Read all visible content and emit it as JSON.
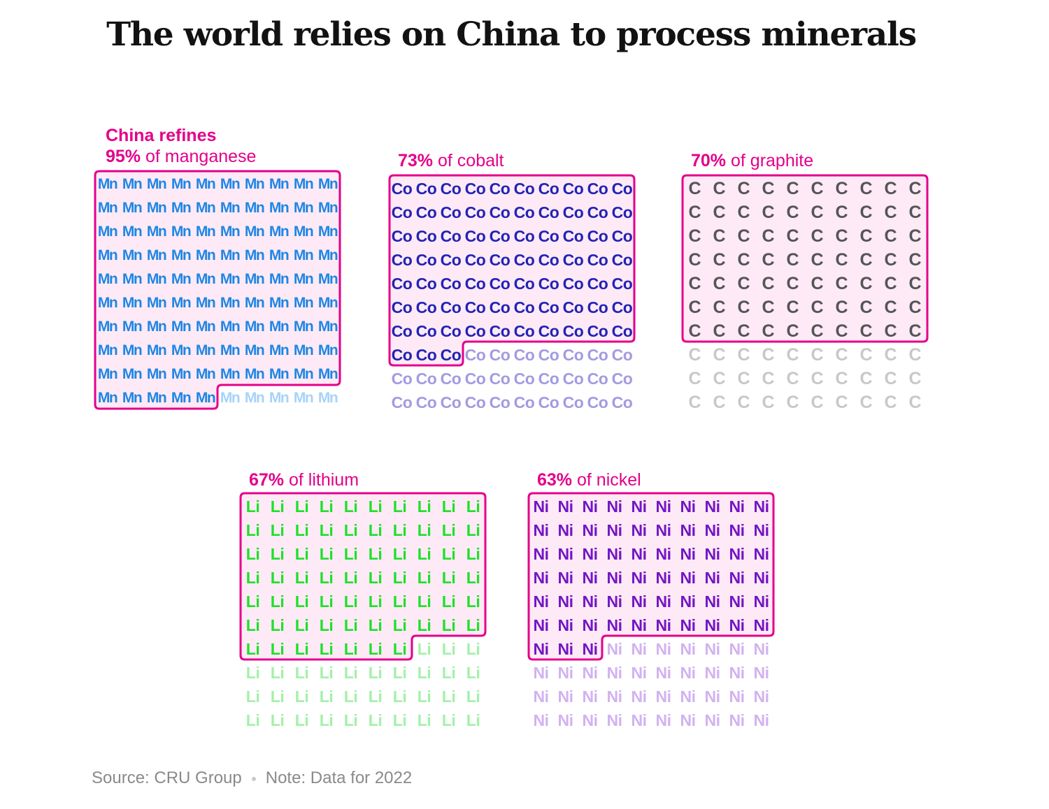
{
  "title": "The world relies on China to process minerals",
  "intro_label": "China refines",
  "footer": {
    "source": "Source: CRU Group",
    "note": "Note: Data for 2022"
  },
  "colors": {
    "highlight": "#e4008a",
    "box_fill": "#fdeaf6"
  },
  "chart_data": {
    "type": "waffle",
    "title": "The world relies on China to process minerals",
    "subtitle": "China refines",
    "unit": "%",
    "columns": 10,
    "series": [
      {
        "name": "manganese",
        "symbol": "Mn",
        "value": 95,
        "total": 100,
        "pct_text": "95%",
        "rest_text": " of manganese",
        "color": "#1f86e3",
        "light_color": "#a6d3fa"
      },
      {
        "name": "cobalt",
        "symbol": "Co",
        "value": 73,
        "total": 100,
        "pct_text": "73%",
        "rest_text": " of cobalt",
        "color": "#2323b4",
        "light_color": "#a29be2"
      },
      {
        "name": "graphite",
        "symbol": "C",
        "value": 70,
        "total": 100,
        "pct_text": "70%",
        "rest_text": " of graphite",
        "color": "#555555",
        "light_color": "#c8c8c8"
      },
      {
        "name": "lithium",
        "symbol": "Li",
        "value": 67,
        "total": 100,
        "pct_text": "67%",
        "rest_text": " of lithium",
        "color": "#1ee02a",
        "light_color": "#a4f0a8"
      },
      {
        "name": "nickel",
        "symbol": "Ni",
        "value": 63,
        "total": 100,
        "pct_text": "63%",
        "rest_text": " of nickel",
        "color": "#7415c6",
        "light_color": "#d2b2f0"
      }
    ]
  }
}
